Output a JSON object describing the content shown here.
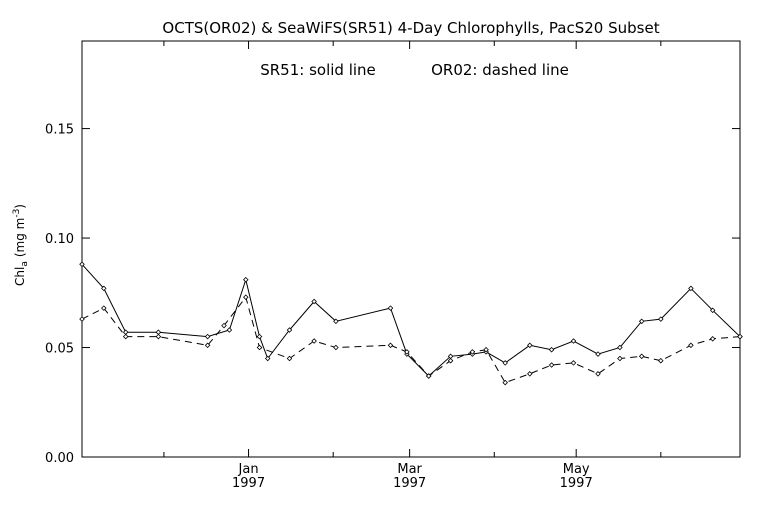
{
  "chart_data": {
    "type": "line",
    "title": "OCTS(OR02) & SeaWiFS(SR51) 4-Day Chlorophylls, PacS20 Subset",
    "annotation_solid": "SR51: solid line",
    "annotation_dashed": "OR02: dashed line",
    "ylabel_main": "Chl",
    "ylabel_sub": "a",
    "ylabel_units": "(mg m",
    "ylabel_exp": "-3",
    "ylabel_close": ")",
    "ylim": [
      0.0,
      0.19
    ],
    "xlim": [
      "1996-11-01",
      "1997-06-30"
    ],
    "y_ticks": [
      {
        "value": 0.0,
        "label": "0.00"
      },
      {
        "value": 0.05,
        "label": "0.05"
      },
      {
        "value": 0.1,
        "label": "0.10"
      },
      {
        "value": 0.15,
        "label": "0.15"
      }
    ],
    "x_ticks": [
      {
        "date": "1997-01-01",
        "label": "Jan",
        "year": "1997"
      },
      {
        "date": "1997-03-01",
        "label": "Mar",
        "year": "1997"
      },
      {
        "date": "1997-05-01",
        "label": "May",
        "year": "1997"
      }
    ],
    "x_minor_ticks": [
      "1996-12-01",
      "1997-02-01",
      "1997-04-01",
      "1997-06-01"
    ],
    "grid": false,
    "series": [
      {
        "name": "SR51",
        "style": "solid",
        "x": [
          "1996-11-01",
          "1996-11-09",
          "1996-11-17",
          "1996-11-29",
          "1996-12-17",
          "1996-12-25",
          "1996-12-31",
          "1997-01-05",
          "1997-01-08",
          "1997-01-16",
          "1997-01-25",
          "1997-02-02",
          "1997-02-22",
          "1997-02-28",
          "1997-03-08",
          "1997-03-16",
          "1997-03-24",
          "1997-03-29",
          "1997-04-05",
          "1997-04-14",
          "1997-04-22",
          "1997-04-30",
          "1997-05-09",
          "1997-05-17",
          "1997-05-25",
          "1997-06-01",
          "1997-06-12",
          "1997-06-20",
          "1997-06-30"
        ],
        "values": [
          0.088,
          0.077,
          0.057,
          0.057,
          0.055,
          0.058,
          0.081,
          0.055,
          0.045,
          0.058,
          0.071,
          0.062,
          0.068,
          0.047,
          0.037,
          0.046,
          0.047,
          0.048,
          0.043,
          0.051,
          0.049,
          0.053,
          0.047,
          0.05,
          0.062,
          0.063,
          0.077,
          0.067,
          0.055
        ]
      },
      {
        "name": "OR02",
        "style": "dashed",
        "x": [
          "1996-11-01",
          "1996-11-09",
          "1996-11-17",
          "1996-11-29",
          "1996-12-17",
          "1996-12-23",
          "1996-12-31",
          "1997-01-05",
          "1997-01-16",
          "1997-01-25",
          "1997-02-02",
          "1997-02-22",
          "1997-02-28",
          "1997-03-08",
          "1997-03-16",
          "1997-03-24",
          "1997-03-29",
          "1997-04-05",
          "1997-04-14",
          "1997-04-22",
          "1997-04-30",
          "1997-05-09",
          "1997-05-17",
          "1997-05-25",
          "1997-06-01",
          "1997-06-12",
          "1997-06-20",
          "1997-06-30"
        ],
        "values": [
          0.063,
          0.068,
          0.055,
          0.055,
          0.051,
          0.06,
          0.073,
          0.05,
          0.045,
          0.053,
          0.05,
          0.051,
          0.048,
          0.037,
          0.044,
          0.048,
          0.049,
          0.034,
          0.038,
          0.042,
          0.043,
          0.038,
          0.045,
          0.046,
          0.044,
          0.051,
          0.054,
          0.055
        ]
      }
    ]
  }
}
